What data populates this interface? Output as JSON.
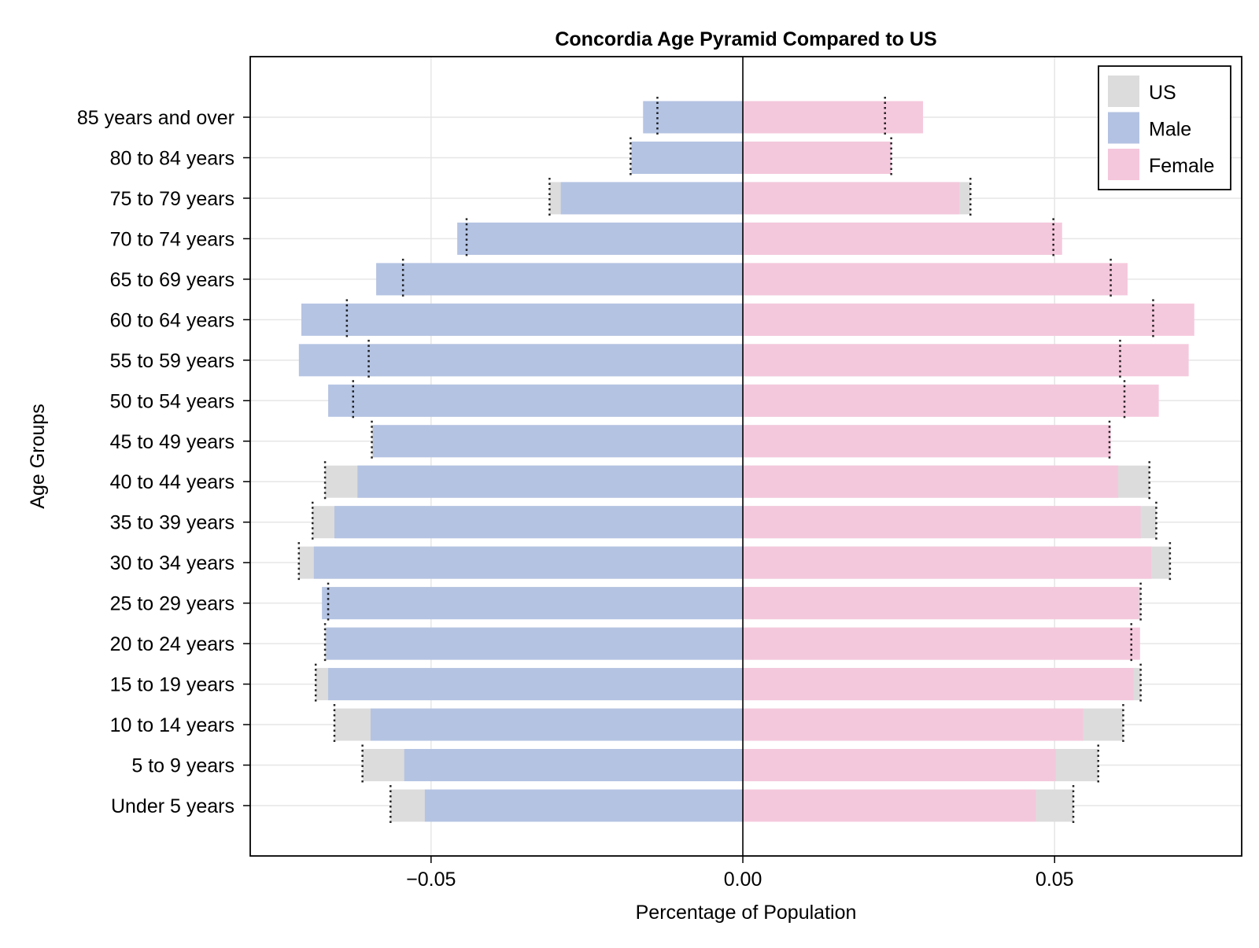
{
  "chart_data": {
    "type": "bar",
    "orientation": "horizontal",
    "title": "Concordia Age Pyramid Compared to US",
    "xlabel": "Percentage of Population",
    "ylabel": "Age Groups",
    "xlim": [
      -0.079,
      0.08
    ],
    "x_ticks": [
      -0.05,
      0.0,
      0.05
    ],
    "x_tick_labels": [
      "−0.05",
      "0.00",
      "0.05"
    ],
    "grid": true,
    "legend_position": "top-right",
    "categories": [
      "Under 5 years",
      "5 to 9 years",
      "10 to 14 years",
      "15 to 19 years",
      "20 to 24 years",
      "25 to 29 years",
      "30 to 34 years",
      "35 to 39 years",
      "40 to 44 years",
      "45 to 49 years",
      "50 to 54 years",
      "55 to 59 years",
      "60 to 64 years",
      "65 to 69 years",
      "70 to 74 years",
      "75 to 79 years",
      "80 to 84 years",
      "85 years and over"
    ],
    "series": [
      {
        "name": "US",
        "color": "#dcdcdc",
        "male": [
          -0.0565,
          -0.061,
          -0.0655,
          -0.0685,
          -0.067,
          -0.0665,
          -0.0712,
          -0.069,
          -0.067,
          -0.0595,
          -0.0625,
          -0.06,
          -0.0635,
          -0.0545,
          -0.0443,
          -0.031,
          -0.018,
          -0.0137
        ],
        "female": [
          0.053,
          0.057,
          0.061,
          0.0638,
          0.0623,
          0.0638,
          0.0685,
          0.0663,
          0.0652,
          0.0588,
          0.0612,
          0.0605,
          0.0658,
          0.059,
          0.0498,
          0.0365,
          0.0238,
          0.0228
        ]
      },
      {
        "name": "Male",
        "color": "#b3c2e2",
        "values": [
          -0.051,
          -0.0543,
          -0.0597,
          -0.0665,
          -0.0668,
          -0.0675,
          -0.0688,
          -0.0655,
          -0.0618,
          -0.0593,
          -0.0665,
          -0.0712,
          -0.0708,
          -0.0588,
          -0.0458,
          -0.0292,
          -0.0178,
          -0.016
        ]
      },
      {
        "name": "Female",
        "color": "#f5c7dc",
        "values": [
          0.047,
          0.0502,
          0.0546,
          0.0627,
          0.0637,
          0.0635,
          0.0655,
          0.0638,
          0.0602,
          0.059,
          0.0667,
          0.0715,
          0.0724,
          0.0617,
          0.0512,
          0.0347,
          0.0238,
          0.0289
        ]
      }
    ]
  }
}
